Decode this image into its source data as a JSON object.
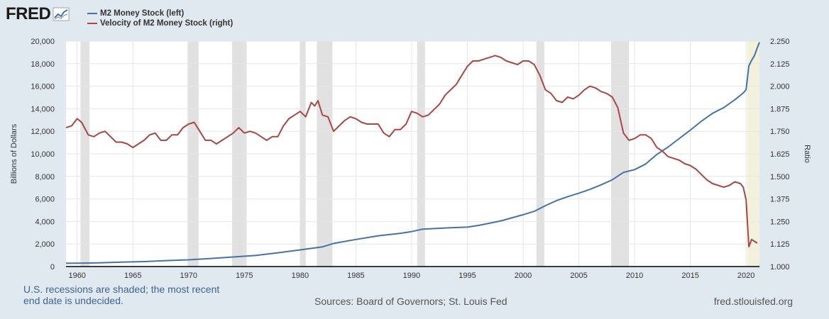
{
  "header": {
    "logo": "FRED"
  },
  "legend": {
    "items": [
      {
        "label": "M2 Money Stock (left)",
        "color": "#4572a7"
      },
      {
        "label": "Velocity of M2 Money Stock (right)",
        "color": "#aa4643"
      }
    ]
  },
  "footer": {
    "note": "U.S. recessions are shaded; the most recent end date is undecided.",
    "source": "Sources: Board of Governors; St. Louis Fed",
    "url": "fred.stlouisfed.org"
  },
  "chart_data": {
    "type": "line",
    "xlim": [
      1959,
      2021.2
    ],
    "x_ticks": [
      "1960",
      "1965",
      "1970",
      "1975",
      "1980",
      "1985",
      "1990",
      "1995",
      "2000",
      "2005",
      "2010",
      "2015",
      "2020"
    ],
    "ylabel_left": "Billions of Dollars",
    "ylim_left": [
      0,
      20000
    ],
    "y_ticks_left": [
      "0",
      "2,000",
      "4,000",
      "6,000",
      "8,000",
      "10,000",
      "12,000",
      "14,000",
      "16,000",
      "18,000",
      "20,000"
    ],
    "ylabel_right": "Ratio",
    "ylim_right": [
      1.0,
      2.25
    ],
    "y_ticks_right": [
      "1.000",
      "1.125",
      "1.250",
      "1.375",
      "1.500",
      "1.625",
      "1.750",
      "1.875",
      "2.000",
      "2.125",
      "2.250"
    ],
    "grid": true,
    "recessions": [
      [
        1960.3,
        1961.1
      ],
      [
        1969.9,
        1970.9
      ],
      [
        1973.9,
        1975.2
      ],
      [
        1980.0,
        1980.5
      ],
      [
        1981.5,
        1982.9
      ],
      [
        1990.5,
        1991.2
      ],
      [
        2001.2,
        2001.9
      ],
      [
        2007.9,
        2009.5
      ],
      [
        2020.1,
        2021.2
      ]
    ],
    "recession_color": "#e1e1e1",
    "open_recession_color": "#f2f2dc",
    "series": [
      {
        "name": "M2 Money Stock (left)",
        "axis": "left",
        "color": "#4572a7",
        "points": [
          [
            1959.0,
            290
          ],
          [
            1960.0,
            300
          ],
          [
            1962.0,
            330
          ],
          [
            1964.0,
            390
          ],
          [
            1966.0,
            440
          ],
          [
            1968.0,
            530
          ],
          [
            1970.0,
            600
          ],
          [
            1972.0,
            720
          ],
          [
            1974.0,
            850
          ],
          [
            1976.0,
            980
          ],
          [
            1978.0,
            1220
          ],
          [
            1980.0,
            1480
          ],
          [
            1982.0,
            1750
          ],
          [
            1983.0,
            2050
          ],
          [
            1985.0,
            2400
          ],
          [
            1987.0,
            2730
          ],
          [
            1989.0,
            2950
          ],
          [
            1990.0,
            3100
          ],
          [
            1991.0,
            3320
          ],
          [
            1993.0,
            3420
          ],
          [
            1995.0,
            3500
          ],
          [
            1996.0,
            3650
          ],
          [
            1998.0,
            4050
          ],
          [
            2000.0,
            4600
          ],
          [
            2001.0,
            4900
          ],
          [
            2002.0,
            5400
          ],
          [
            2003.0,
            5850
          ],
          [
            2004.0,
            6200
          ],
          [
            2005.0,
            6500
          ],
          [
            2006.0,
            6850
          ],
          [
            2007.0,
            7250
          ],
          [
            2008.0,
            7700
          ],
          [
            2009.0,
            8350
          ],
          [
            2010.0,
            8600
          ],
          [
            2011.0,
            9100
          ],
          [
            2012.0,
            9950
          ],
          [
            2013.0,
            10600
          ],
          [
            2014.0,
            11350
          ],
          [
            2015.0,
            12100
          ],
          [
            2016.0,
            12900
          ],
          [
            2017.0,
            13600
          ],
          [
            2018.0,
            14100
          ],
          [
            2019.0,
            14800
          ],
          [
            2019.75,
            15400
          ],
          [
            2020.0,
            15700
          ],
          [
            2020.25,
            17800
          ],
          [
            2020.5,
            18300
          ],
          [
            2020.75,
            18700
          ],
          [
            2021.0,
            19400
          ],
          [
            2021.2,
            19900
          ]
        ]
      },
      {
        "name": "Velocity of M2 Money Stock (right)",
        "axis": "right",
        "color": "#aa4643",
        "points": [
          [
            1959.0,
            1.77
          ],
          [
            1959.5,
            1.78
          ],
          [
            1960.0,
            1.82
          ],
          [
            1960.4,
            1.8
          ],
          [
            1961.0,
            1.73
          ],
          [
            1961.5,
            1.72
          ],
          [
            1962.0,
            1.74
          ],
          [
            1962.5,
            1.75
          ],
          [
            1963.0,
            1.72
          ],
          [
            1963.5,
            1.69
          ],
          [
            1964.0,
            1.69
          ],
          [
            1964.5,
            1.68
          ],
          [
            1965.0,
            1.66
          ],
          [
            1965.5,
            1.68
          ],
          [
            1966.0,
            1.7
          ],
          [
            1966.5,
            1.73
          ],
          [
            1967.0,
            1.74
          ],
          [
            1967.5,
            1.7
          ],
          [
            1968.0,
            1.7
          ],
          [
            1968.5,
            1.73
          ],
          [
            1969.0,
            1.73
          ],
          [
            1969.5,
            1.77
          ],
          [
            1970.0,
            1.79
          ],
          [
            1970.5,
            1.8
          ],
          [
            1971.0,
            1.75
          ],
          [
            1971.5,
            1.7
          ],
          [
            1972.0,
            1.7
          ],
          [
            1972.5,
            1.68
          ],
          [
            1973.0,
            1.7
          ],
          [
            1973.5,
            1.72
          ],
          [
            1974.0,
            1.74
          ],
          [
            1974.5,
            1.77
          ],
          [
            1975.0,
            1.74
          ],
          [
            1975.5,
            1.75
          ],
          [
            1976.0,
            1.74
          ],
          [
            1976.5,
            1.72
          ],
          [
            1977.0,
            1.7
          ],
          [
            1977.5,
            1.72
          ],
          [
            1978.0,
            1.72
          ],
          [
            1978.5,
            1.78
          ],
          [
            1979.0,
            1.82
          ],
          [
            1979.5,
            1.84
          ],
          [
            1980.0,
            1.86
          ],
          [
            1980.5,
            1.83
          ],
          [
            1981.0,
            1.91
          ],
          [
            1981.3,
            1.89
          ],
          [
            1981.6,
            1.92
          ],
          [
            1982.0,
            1.84
          ],
          [
            1982.5,
            1.83
          ],
          [
            1983.0,
            1.75
          ],
          [
            1983.5,
            1.78
          ],
          [
            1984.0,
            1.81
          ],
          [
            1984.5,
            1.83
          ],
          [
            1985.0,
            1.82
          ],
          [
            1985.5,
            1.8
          ],
          [
            1986.0,
            1.79
          ],
          [
            1987.0,
            1.79
          ],
          [
            1987.5,
            1.74
          ],
          [
            1988.0,
            1.72
          ],
          [
            1988.5,
            1.76
          ],
          [
            1989.0,
            1.76
          ],
          [
            1989.5,
            1.79
          ],
          [
            1990.0,
            1.86
          ],
          [
            1990.5,
            1.85
          ],
          [
            1991.0,
            1.83
          ],
          [
            1991.5,
            1.84
          ],
          [
            1992.0,
            1.87
          ],
          [
            1992.5,
            1.9
          ],
          [
            1993.0,
            1.95
          ],
          [
            1993.5,
            1.98
          ],
          [
            1994.0,
            2.01
          ],
          [
            1994.5,
            2.06
          ],
          [
            1995.0,
            2.11
          ],
          [
            1995.5,
            2.14
          ],
          [
            1996.0,
            2.14
          ],
          [
            1996.5,
            2.15
          ],
          [
            1997.0,
            2.16
          ],
          [
            1997.5,
            2.17
          ],
          [
            1998.0,
            2.16
          ],
          [
            1998.5,
            2.14
          ],
          [
            1999.0,
            2.13
          ],
          [
            1999.5,
            2.12
          ],
          [
            2000.0,
            2.14
          ],
          [
            2000.5,
            2.14
          ],
          [
            2001.0,
            2.12
          ],
          [
            2001.5,
            2.06
          ],
          [
            2002.0,
            1.98
          ],
          [
            2002.5,
            1.96
          ],
          [
            2003.0,
            1.92
          ],
          [
            2003.5,
            1.91
          ],
          [
            2004.0,
            1.94
          ],
          [
            2004.5,
            1.93
          ],
          [
            2005.0,
            1.95
          ],
          [
            2005.5,
            1.98
          ],
          [
            2006.0,
            2.0
          ],
          [
            2006.5,
            1.99
          ],
          [
            2007.0,
            1.97
          ],
          [
            2007.5,
            1.96
          ],
          [
            2008.0,
            1.94
          ],
          [
            2008.5,
            1.88
          ],
          [
            2009.0,
            1.74
          ],
          [
            2009.5,
            1.7
          ],
          [
            2010.0,
            1.71
          ],
          [
            2010.5,
            1.73
          ],
          [
            2011.0,
            1.73
          ],
          [
            2011.5,
            1.71
          ],
          [
            2012.0,
            1.66
          ],
          [
            2012.5,
            1.64
          ],
          [
            2013.0,
            1.61
          ],
          [
            2013.5,
            1.6
          ],
          [
            2014.0,
            1.59
          ],
          [
            2014.5,
            1.57
          ],
          [
            2015.0,
            1.56
          ],
          [
            2015.5,
            1.54
          ],
          [
            2016.0,
            1.51
          ],
          [
            2016.5,
            1.48
          ],
          [
            2017.0,
            1.46
          ],
          [
            2017.5,
            1.45
          ],
          [
            2018.0,
            1.44
          ],
          [
            2018.5,
            1.45
          ],
          [
            2019.0,
            1.47
          ],
          [
            2019.5,
            1.46
          ],
          [
            2019.75,
            1.44
          ],
          [
            2020.0,
            1.37
          ],
          [
            2020.25,
            1.11
          ],
          [
            2020.5,
            1.15
          ],
          [
            2020.75,
            1.14
          ],
          [
            2021.0,
            1.13
          ]
        ]
      }
    ]
  }
}
